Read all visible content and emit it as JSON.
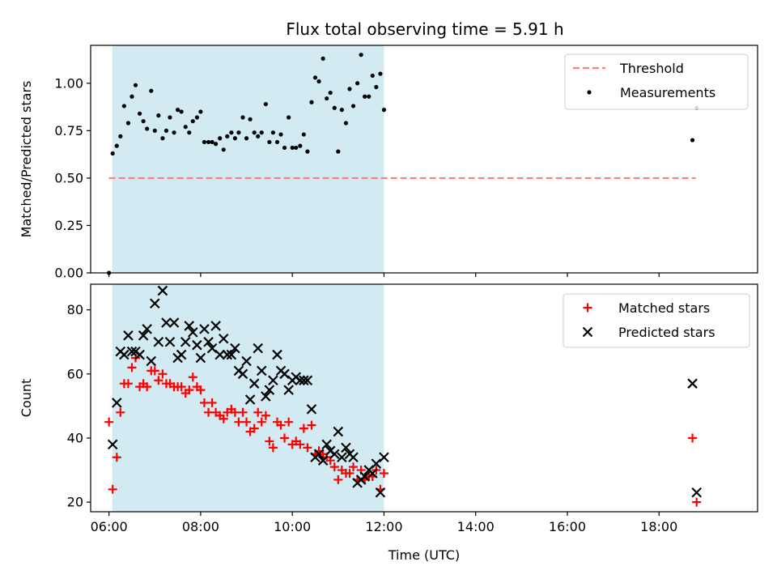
{
  "chart_data": [
    {
      "type": "scatter",
      "title": "Flux total observing time = 5.91 h",
      "ylabel": "Matched/Predicted stars",
      "xlabel": "",
      "xlim": [
        5.6,
        20.15
      ],
      "ylim": [
        0,
        1.2
      ],
      "y_ticks": [
        0.0,
        0.25,
        0.5,
        0.75,
        1.0
      ],
      "y_tick_labels": [
        "0.00",
        "0.25",
        "0.50",
        "0.75",
        "1.00"
      ],
      "shaded_interval": {
        "from": 6.07,
        "to": 12.0,
        "color": "#add8e6"
      },
      "legend_position": "top-right",
      "legend": [
        "Threshold",
        "Measurements"
      ],
      "grid": false,
      "series": [
        {
          "name": "Threshold",
          "kind": "dashed-line",
          "color": "#ff7f7f",
          "x": [
            6.0,
            18.8
          ],
          "y": [
            0.5,
            0.5
          ]
        },
        {
          "name": "Measurements",
          "kind": "dot",
          "color": "#000000",
          "x": [
            6.0,
            6.08,
            6.17,
            6.25,
            6.33,
            6.42,
            6.5,
            6.58,
            6.67,
            6.75,
            6.83,
            6.92,
            7.0,
            7.08,
            7.17,
            7.25,
            7.33,
            7.42,
            7.5,
            7.58,
            7.67,
            7.75,
            7.83,
            7.92,
            8.0,
            8.08,
            8.17,
            8.25,
            8.33,
            8.42,
            8.5,
            8.58,
            8.67,
            8.75,
            8.83,
            8.92,
            9.0,
            9.08,
            9.17,
            9.25,
            9.33,
            9.42,
            9.5,
            9.58,
            9.67,
            9.75,
            9.83,
            9.92,
            10.0,
            10.08,
            10.17,
            10.25,
            10.33,
            10.42,
            10.5,
            10.58,
            10.67,
            10.75,
            10.83,
            10.92,
            11.0,
            11.08,
            11.17,
            11.25,
            11.33,
            11.42,
            11.5,
            11.58,
            11.67,
            11.75,
            11.83,
            11.92,
            12.0,
            18.73,
            18.82
          ],
          "y": [
            0.0,
            0.63,
            0.67,
            0.72,
            0.88,
            0.79,
            0.93,
            0.99,
            0.84,
            0.8,
            0.76,
            0.96,
            0.75,
            0.83,
            0.71,
            0.75,
            0.82,
            0.74,
            0.86,
            0.85,
            0.77,
            0.74,
            0.8,
            0.82,
            0.85,
            0.69,
            0.69,
            0.69,
            0.68,
            0.71,
            0.65,
            0.72,
            0.74,
            0.71,
            0.74,
            0.82,
            0.71,
            0.81,
            0.74,
            0.72,
            0.74,
            0.89,
            0.69,
            0.74,
            0.69,
            0.73,
            0.66,
            0.82,
            0.66,
            0.66,
            0.67,
            0.73,
            0.64,
            0.9,
            1.03,
            1.01,
            1.13,
            0.92,
            0.95,
            0.87,
            0.64,
            0.86,
            0.79,
            0.97,
            0.88,
            1.0,
            1.15,
            0.93,
            0.93,
            1.04,
            0.98,
            1.05,
            0.86,
            0.7,
            0.87
          ]
        }
      ]
    },
    {
      "type": "scatter",
      "title": "",
      "ylabel": "Count",
      "xlabel": "Time (UTC)",
      "xlim": [
        5.6,
        20.15
      ],
      "ylim": [
        17,
        88
      ],
      "x_ticks": [
        6,
        8,
        10,
        12,
        14,
        16,
        18
      ],
      "x_tick_labels": [
        "06:00",
        "08:00",
        "10:00",
        "12:00",
        "14:00",
        "16:00",
        "18:00"
      ],
      "y_ticks": [
        20,
        40,
        60,
        80
      ],
      "y_tick_labels": [
        "20",
        "40",
        "60",
        "80"
      ],
      "shaded_interval": {
        "from": 6.07,
        "to": 12.0,
        "color": "#add8e6"
      },
      "legend_position": "top-right",
      "legend": [
        "Matched stars",
        "Predicted stars"
      ],
      "grid": false,
      "series": [
        {
          "name": "Matched stars",
          "kind": "plus",
          "color": "#ff0000",
          "x": [
            6.0,
            6.08,
            6.17,
            6.25,
            6.33,
            6.42,
            6.5,
            6.58,
            6.67,
            6.75,
            6.83,
            6.92,
            7.0,
            7.08,
            7.17,
            7.25,
            7.33,
            7.42,
            7.5,
            7.58,
            7.67,
            7.75,
            7.83,
            7.92,
            8.0,
            8.08,
            8.17,
            8.25,
            8.33,
            8.42,
            8.5,
            8.58,
            8.67,
            8.75,
            8.83,
            8.92,
            9.0,
            9.08,
            9.17,
            9.25,
            9.33,
            9.42,
            9.5,
            9.58,
            9.67,
            9.75,
            9.83,
            9.92,
            10.0,
            10.08,
            10.17,
            10.25,
            10.33,
            10.42,
            10.5,
            10.58,
            10.67,
            10.75,
            10.83,
            10.92,
            11.0,
            11.08,
            11.17,
            11.25,
            11.33,
            11.42,
            11.5,
            11.58,
            11.67,
            11.75,
            11.83,
            11.92,
            12.0,
            18.73,
            18.82
          ],
          "y": [
            45,
            24,
            34,
            48,
            57,
            57,
            62,
            65,
            56,
            57,
            56,
            61,
            61,
            58,
            60,
            57,
            57,
            56,
            56,
            56,
            54,
            55,
            59,
            56,
            55,
            51,
            48,
            51,
            48,
            47,
            46,
            48,
            49,
            48,
            45,
            48,
            45,
            42,
            43,
            48,
            45,
            47,
            39,
            37,
            45,
            44,
            40,
            45,
            38,
            39,
            38,
            43,
            37,
            44,
            35,
            36,
            35,
            34,
            33,
            31,
            27,
            30,
            29,
            29,
            31,
            27,
            30,
            27,
            28,
            28,
            30,
            24,
            29,
            40,
            20
          ]
        },
        {
          "name": "Predicted stars",
          "kind": "cross",
          "color": "#000000",
          "x": [
            6.08,
            6.17,
            6.25,
            6.33,
            6.42,
            6.5,
            6.58,
            6.67,
            6.75,
            6.83,
            6.92,
            7.0,
            7.08,
            7.17,
            7.25,
            7.33,
            7.42,
            7.5,
            7.58,
            7.67,
            7.75,
            7.83,
            7.92,
            8.0,
            8.08,
            8.17,
            8.25,
            8.33,
            8.42,
            8.5,
            8.58,
            8.67,
            8.75,
            8.83,
            8.92,
            9.0,
            9.08,
            9.17,
            9.25,
            9.33,
            9.42,
            9.5,
            9.58,
            9.67,
            9.75,
            9.83,
            9.92,
            10.0,
            10.08,
            10.17,
            10.25,
            10.33,
            10.42,
            10.5,
            10.58,
            10.67,
            10.75,
            10.83,
            10.92,
            11.0,
            11.08,
            11.17,
            11.25,
            11.33,
            11.42,
            11.5,
            11.58,
            11.67,
            11.75,
            11.83,
            11.92,
            12.0,
            18.73,
            18.82
          ],
          "y": [
            38,
            51,
            67,
            66,
            72,
            67,
            67,
            66,
            72,
            74,
            64,
            82,
            70,
            86,
            76,
            70,
            76,
            65,
            66,
            70,
            75,
            73,
            69,
            65,
            74,
            70,
            68,
            75,
            66,
            71,
            66,
            66,
            68,
            61,
            60,
            64,
            52,
            57,
            68,
            61,
            53,
            55,
            58,
            66,
            61,
            60,
            55,
            58,
            59,
            58,
            58,
            58,
            49,
            34,
            35,
            33,
            38,
            36,
            35,
            42,
            34,
            37,
            35,
            34,
            26,
            27,
            28,
            30,
            29,
            32,
            23,
            34,
            57,
            23
          ]
        }
      ]
    }
  ]
}
